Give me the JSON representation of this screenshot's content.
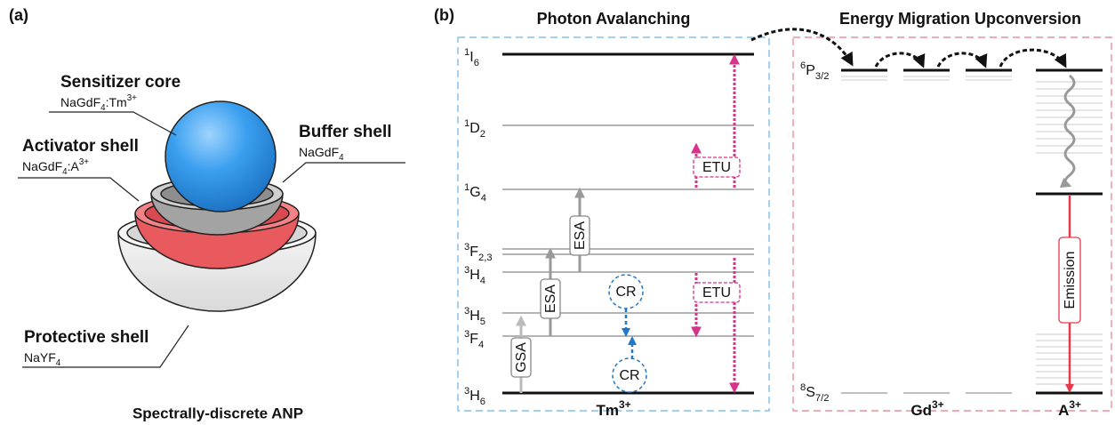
{
  "panel_a": {
    "label": "(a)",
    "caption": "Spectrally-discrete ANP",
    "layers": [
      {
        "name": "Sensitizer core",
        "formula": [
          {
            "text": "NaGdF"
          },
          {
            "sub": "4"
          },
          {
            "text": ":Tm"
          },
          {
            "sup": "3+"
          }
        ]
      },
      {
        "name": "Buffer shell",
        "formula": [
          {
            "text": "NaGdF"
          },
          {
            "sub": "4"
          }
        ]
      },
      {
        "name": "Activator shell",
        "formula": [
          {
            "text": "NaGdF"
          },
          {
            "sub": "4"
          },
          {
            "text": ":A"
          },
          {
            "sup": "3+"
          }
        ]
      },
      {
        "name": "Protective shell",
        "formula": [
          {
            "text": "NaYF"
          },
          {
            "sub": "4"
          }
        ]
      }
    ]
  },
  "panel_b": {
    "label": "(b)",
    "titles": [
      "Photon Avalanching",
      "Energy Migration Upconversion"
    ],
    "tm_levels": [
      [
        {
          "sup": "1"
        },
        {
          "text": "I"
        },
        {
          "sub": "6"
        }
      ],
      [
        {
          "sup": "1"
        },
        {
          "text": "D"
        },
        {
          "sub": "2"
        }
      ],
      [
        {
          "sup": "1"
        },
        {
          "text": "G"
        },
        {
          "sub": "4"
        }
      ],
      [
        {
          "sup": "3"
        },
        {
          "text": "F"
        },
        {
          "sub": "2,3"
        }
      ],
      [
        {
          "sup": "3"
        },
        {
          "text": "H"
        },
        {
          "sub": "4"
        }
      ],
      [
        {
          "sup": "3"
        },
        {
          "text": "H"
        },
        {
          "sub": "5"
        }
      ],
      [
        {
          "sup": "3"
        },
        {
          "text": "F"
        },
        {
          "sub": "4"
        }
      ],
      [
        {
          "sup": "3"
        },
        {
          "text": "H"
        },
        {
          "sub": "6"
        }
      ]
    ],
    "gd_levels": [
      [
        {
          "sup": "6"
        },
        {
          "text": "P"
        },
        {
          "sub": "3/2"
        }
      ],
      [
        {
          "sup": "8"
        },
        {
          "text": "S"
        },
        {
          "sub": "7/2"
        }
      ]
    ],
    "transitions": [
      "GSA",
      "ESA",
      "ESA",
      "CR",
      "CR",
      "ETU",
      "ETU",
      "Emission"
    ],
    "ions": [
      [
        {
          "text": "Tm"
        },
        {
          "sup": "3+"
        }
      ],
      [
        {
          "text": "Gd"
        },
        {
          "sup": "3+"
        }
      ],
      [
        {
          "text": "A"
        },
        {
          "sup": "3+"
        }
      ]
    ]
  }
}
